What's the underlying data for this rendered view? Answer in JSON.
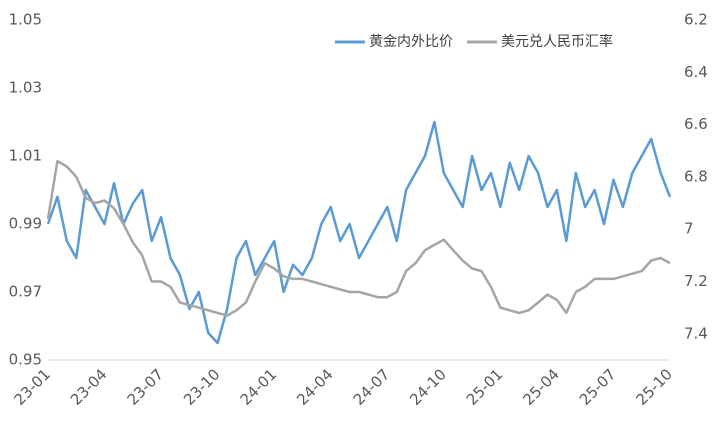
{
  "chart_data": {
    "type": "line",
    "categories": [
      "23-01",
      null,
      null,
      null,
      null,
      null,
      "23-04",
      null,
      null,
      null,
      null,
      null,
      "23-07",
      null,
      null,
      null,
      null,
      null,
      "23-10",
      null,
      null,
      null,
      null,
      null,
      "24-01",
      null,
      null,
      null,
      null,
      null,
      "24-04",
      null,
      null,
      null,
      null,
      null,
      "24-07",
      null,
      null,
      null,
      null,
      null,
      "24-10",
      null,
      null,
      null,
      null,
      null,
      "25-01",
      null,
      null,
      null,
      null,
      null,
      "25-04",
      null,
      null,
      null,
      null,
      null,
      "25-07",
      null,
      null,
      null,
      null,
      null,
      "25-10"
    ],
    "series": [
      {
        "name": "黄金内外比价",
        "color": "#5b9bd5",
        "values": [
          0.99,
          0.998,
          0.985,
          0.98,
          1.0,
          0.995,
          0.99,
          1.002,
          0.99,
          0.996,
          1.0,
          0.985,
          0.992,
          0.98,
          0.975,
          0.965,
          0.97,
          0.958,
          0.955,
          0.965,
          0.98,
          0.985,
          0.975,
          0.98,
          0.985,
          0.97,
          0.978,
          0.975,
          0.98,
          0.99,
          0.995,
          0.985,
          0.99,
          0.98,
          0.985,
          0.99,
          0.995,
          0.985,
          1.0,
          1.005,
          1.01,
          1.02,
          1.005,
          1.0,
          0.995,
          1.01,
          1.0,
          1.005,
          0.995,
          1.008,
          1.0,
          1.01,
          1.005,
          0.995,
          1.0,
          0.985,
          1.005,
          0.995,
          1.0,
          0.99,
          1.003,
          0.995,
          1.005,
          1.01,
          1.015,
          1.005,
          0.998
        ]
      },
      {
        "name": "美元兑人民币汇率",
        "color": "#a5a5a5",
        "axis": "y2",
        "values": [
          6.96,
          6.74,
          6.76,
          6.8,
          6.88,
          6.9,
          6.89,
          6.92,
          6.98,
          7.05,
          7.1,
          7.2,
          7.2,
          7.22,
          7.28,
          7.29,
          7.3,
          7.31,
          7.32,
          7.33,
          7.31,
          7.28,
          7.2,
          7.13,
          7.15,
          7.18,
          7.19,
          7.19,
          7.2,
          7.21,
          7.22,
          7.23,
          7.24,
          7.24,
          7.25,
          7.26,
          7.26,
          7.24,
          7.16,
          7.13,
          7.08,
          7.06,
          7.04,
          7.08,
          7.12,
          7.15,
          7.16,
          7.22,
          7.3,
          7.31,
          7.32,
          7.31,
          7.28,
          7.25,
          7.27,
          7.32,
          7.24,
          7.22,
          7.19,
          7.19,
          7.19,
          7.18,
          7.17,
          7.16,
          7.12,
          7.11,
          7.13
        ]
      }
    ],
    "ylim": [
      0.95,
      1.05
    ],
    "yticks": [
      0.95,
      0.97,
      0.99,
      1.01,
      1.03,
      1.05
    ],
    "y2lim": [
      6.2,
      7.5
    ],
    "y2ticks": [
      6.2,
      6.4,
      6.6,
      6.8,
      7,
      7.2,
      7.4
    ],
    "y2_inverted": true,
    "legend": "top-right"
  }
}
